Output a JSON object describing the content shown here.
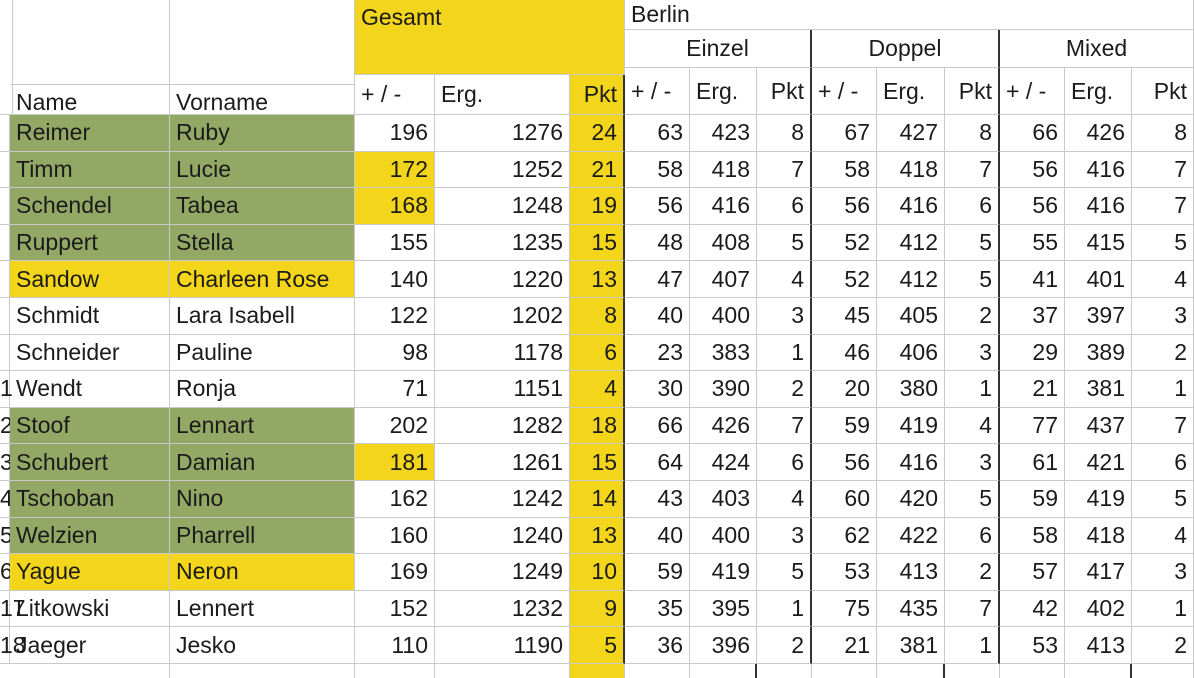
{
  "sheet": {
    "groups": {
      "overall": "Gesamt",
      "location": "Berlin",
      "disciplines": [
        "Einzel",
        "Doppel",
        "Mixed"
      ]
    },
    "name_header": "Name",
    "first_name_header": "Vorname",
    "column_headers": [
      "+ / -",
      "Erg.",
      "Pkt",
      "+ / -",
      "Erg.",
      "Pkt",
      "+ / -",
      "Erg.",
      "Pkt",
      "+ / -",
      "Erg.",
      "Pkt"
    ],
    "colors": {
      "green": "#93a865",
      "yellow": "#f3d51c"
    },
    "rows": [
      {
        "name": "Reimer",
        "first_name": "Ruby",
        "name_fill": "green",
        "cells": [
          196,
          1276,
          24,
          63,
          423,
          8,
          67,
          427,
          8,
          66,
          426,
          8
        ]
      },
      {
        "name": "Timm",
        "first_name": "Lucie",
        "name_fill": "green",
        "plus_minus_fill": "yellow",
        "cells": [
          172,
          1252,
          21,
          58,
          418,
          7,
          58,
          418,
          7,
          56,
          416,
          7
        ]
      },
      {
        "name": "Schendel",
        "first_name": "Tabea",
        "name_fill": "green",
        "plus_minus_fill": "yellow",
        "cells": [
          168,
          1248,
          19,
          56,
          416,
          6,
          56,
          416,
          6,
          56,
          416,
          7
        ]
      },
      {
        "name": "Ruppert",
        "first_name": "Stella",
        "name_fill": "green",
        "cells": [
          155,
          1235,
          15,
          48,
          408,
          5,
          52,
          412,
          5,
          55,
          415,
          5
        ]
      },
      {
        "name": "Sandow",
        "first_name": "Charleen Rose",
        "name_fill": "yellow",
        "cells": [
          140,
          1220,
          13,
          47,
          407,
          4,
          52,
          412,
          5,
          41,
          401,
          4
        ]
      },
      {
        "name": "Schmidt",
        "first_name": "Lara Isabell",
        "cells": [
          122,
          1202,
          8,
          40,
          400,
          3,
          45,
          405,
          2,
          37,
          397,
          3
        ]
      },
      {
        "name": "Schneider",
        "first_name": "Pauline",
        "cells": [
          98,
          1178,
          6,
          23,
          383,
          1,
          46,
          406,
          3,
          29,
          389,
          2
        ]
      },
      {
        "row_number": "1",
        "name": "Wendt",
        "first_name": "Ronja",
        "cells": [
          71,
          1151,
          4,
          30,
          390,
          2,
          20,
          380,
          1,
          21,
          381,
          1
        ]
      },
      {
        "row_number": "2",
        "name": "Stoof",
        "first_name": "Lennart",
        "name_fill": "green",
        "cells": [
          202,
          1282,
          18,
          66,
          426,
          7,
          59,
          419,
          4,
          77,
          437,
          7
        ]
      },
      {
        "row_number": "3",
        "name": "Schubert",
        "first_name": "Damian",
        "name_fill": "green",
        "plus_minus_fill": "yellow",
        "cells": [
          181,
          1261,
          15,
          64,
          424,
          6,
          56,
          416,
          3,
          61,
          421,
          6
        ]
      },
      {
        "row_number": "4",
        "name": "Tschoban",
        "first_name": "Nino",
        "name_fill": "green",
        "cells": [
          162,
          1242,
          14,
          43,
          403,
          4,
          60,
          420,
          5,
          59,
          419,
          5
        ]
      },
      {
        "row_number": "5",
        "name": "Welzien",
        "first_name": "Pharrell",
        "name_fill": "green",
        "cells": [
          160,
          1240,
          13,
          40,
          400,
          3,
          62,
          422,
          6,
          58,
          418,
          4
        ]
      },
      {
        "row_number": "6",
        "name": "Yague",
        "first_name": "Neron",
        "name_fill": "yellow",
        "cells": [
          169,
          1249,
          10,
          59,
          419,
          5,
          53,
          413,
          2,
          57,
          417,
          3
        ]
      },
      {
        "row_number": "17",
        "name": "Litkowski",
        "first_name": "Lennert",
        "cells": [
          152,
          1232,
          9,
          35,
          395,
          1,
          75,
          435,
          7,
          42,
          402,
          1
        ]
      },
      {
        "row_number": "18",
        "name": "Jaeger",
        "first_name": "Jesko",
        "cells": [
          110,
          1190,
          5,
          36,
          396,
          2,
          21,
          381,
          1,
          53,
          413,
          2
        ]
      }
    ]
  }
}
